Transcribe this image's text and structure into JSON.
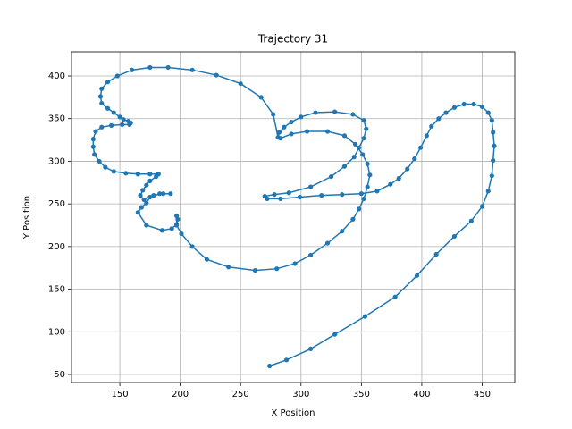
{
  "chart_data": {
    "type": "line",
    "title": "Trajectory 31",
    "x_label": "X Position",
    "y_label": "Y Position",
    "x": [
      274,
      288,
      308,
      328,
      353,
      378,
      396,
      412,
      427,
      441,
      450,
      455,
      458,
      459,
      460,
      459,
      458,
      455,
      450,
      443,
      435,
      427,
      420,
      414,
      408,
      404,
      399,
      394,
      388,
      381,
      374,
      363,
      350,
      334,
      317,
      299,
      283,
      272,
      270,
      278,
      290,
      308,
      325,
      336,
      344,
      348,
      352,
      354,
      352,
      343,
      328,
      312,
      300,
      292,
      286,
      282,
      281,
      277,
      267,
      250,
      230,
      210,
      190,
      175,
      160,
      148,
      140,
      135,
      134,
      135,
      140,
      145,
      150,
      153,
      157,
      159,
      158,
      152,
      143,
      135,
      130,
      128,
      128,
      129,
      133,
      138,
      145,
      155,
      165,
      175,
      182,
      180,
      175,
      172,
      169,
      167,
      170,
      178,
      186,
      192,
      183,
      175,
      172,
      168,
      165,
      172,
      185,
      193,
      197,
      198,
      197,
      197,
      201,
      210,
      222,
      240,
      262,
      280,
      295,
      308,
      322,
      334,
      343,
      348,
      352,
      355,
      357,
      355,
      351,
      345,
      336,
      322,
      305,
      292,
      283
    ],
    "series": [
      {
        "name": "Trajectory",
        "color": "#1f77b4",
        "values": [
          60,
          67,
          80,
          97,
          118,
          141,
          166,
          191,
          212,
          230,
          247,
          265,
          283,
          301,
          318,
          334,
          348,
          357,
          364,
          367,
          367,
          363,
          357,
          350,
          341,
          330,
          316,
          303,
          291,
          280,
          273,
          265,
          262,
          261,
          260,
          258,
          256,
          256,
          259,
          261,
          263,
          270,
          282,
          294,
          305,
          316,
          327,
          338,
          348,
          355,
          358,
          357,
          352,
          346,
          340,
          334,
          328,
          355,
          375,
          391,
          401,
          407,
          410,
          410,
          407,
          400,
          393,
          385,
          376,
          368,
          362,
          357,
          352,
          349,
          347,
          345,
          343,
          343,
          342,
          340,
          335,
          326,
          317,
          308,
          300,
          293,
          288,
          286,
          285,
          285,
          285,
          282,
          277,
          272,
          266,
          260,
          255,
          260,
          262,
          262,
          262,
          258,
          251,
          246,
          240,
          225,
          219,
          221,
          226,
          232,
          236,
          225,
          215,
          200,
          185,
          176,
          172,
          174,
          180,
          190,
          204,
          218,
          232,
          244,
          256,
          270,
          284,
          297,
          308,
          320,
          330,
          335,
          335,
          332,
          327
        ]
      }
    ],
    "xlim": [
      110,
      477
    ],
    "ylim": [
      40.6,
      428.3
    ],
    "xticks": [
      150,
      200,
      250,
      300,
      350,
      400,
      450
    ],
    "yticks": [
      50,
      100,
      150,
      200,
      250,
      300,
      350,
      400
    ],
    "grid": true
  }
}
